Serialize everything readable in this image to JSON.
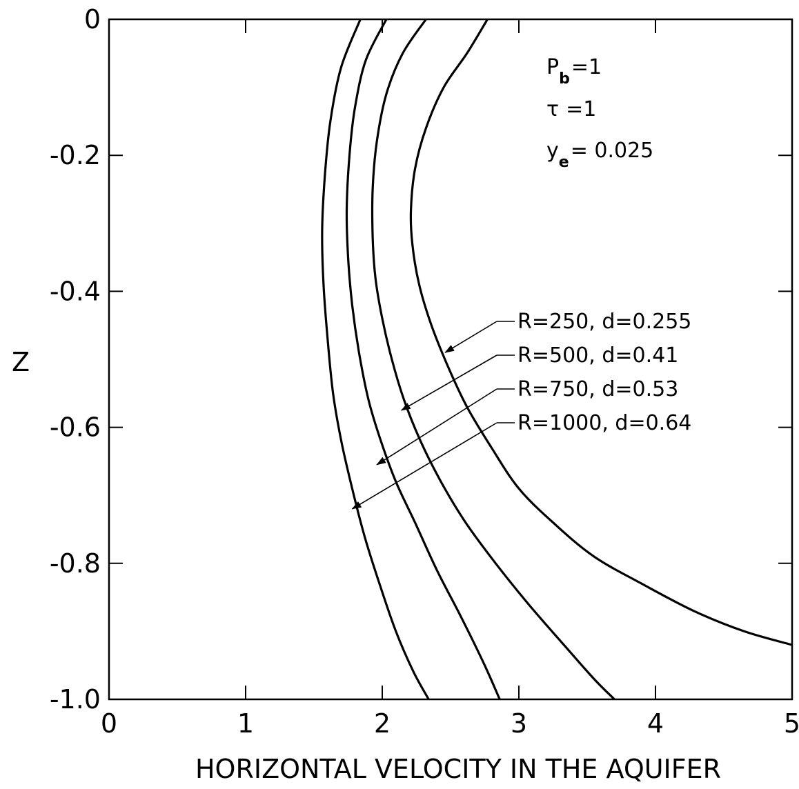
{
  "chart_data": {
    "type": "line",
    "title": "",
    "xlabel": "HORIZONTAL VELOCITY IN THE AQUIFER",
    "ylabel": "Z",
    "xlim": [
      0,
      5
    ],
    "ylim": [
      -1.0,
      0
    ],
    "x_ticks": [
      "0",
      "1",
      "2",
      "3",
      "4",
      "5"
    ],
    "x_tick_values": [
      0,
      1,
      2,
      3,
      4,
      5
    ],
    "y_ticks": [
      "0",
      "-0.2",
      "-0.4",
      "-0.6",
      "-0.8",
      "-1.0"
    ],
    "y_tick_values": [
      0,
      -0.2,
      -0.4,
      -0.6,
      -0.8,
      -1.0
    ],
    "grid": false,
    "parameters": [
      {
        "label": "P",
        "sub": "b",
        "value": "=1"
      },
      {
        "label": "τ",
        "sub": "",
        "value": "=1"
      },
      {
        "label": "y",
        "sub": "e",
        "value": "= 0.025"
      }
    ],
    "series": [
      {
        "name": "R=250, d=0.255",
        "x": [
          2.77,
          2.62,
          2.45,
          2.32,
          2.24,
          2.21,
          2.22,
          2.27,
          2.36,
          2.48,
          2.62,
          2.8,
          3.0,
          3.25,
          3.55,
          3.9,
          4.28,
          4.65,
          5.0
        ],
        "y": [
          0.0,
          -0.05,
          -0.1,
          -0.16,
          -0.22,
          -0.28,
          -0.33,
          -0.39,
          -0.45,
          -0.51,
          -0.57,
          -0.63,
          -0.69,
          -0.74,
          -0.79,
          -0.83,
          -0.87,
          -0.9,
          -0.92
        ]
      },
      {
        "name": "R=500, d=0.41",
        "x": [
          2.32,
          2.15,
          2.03,
          1.96,
          1.93,
          1.93,
          1.95,
          2.0,
          2.07,
          2.16,
          2.28,
          2.43,
          2.61,
          2.83,
          3.07,
          3.33,
          3.55,
          3.7
        ],
        "y": [
          0.0,
          -0.05,
          -0.11,
          -0.18,
          -0.25,
          -0.32,
          -0.38,
          -0.44,
          -0.5,
          -0.56,
          -0.62,
          -0.68,
          -0.74,
          -0.8,
          -0.86,
          -0.92,
          -0.97,
          -1.0
        ]
      },
      {
        "name": "R=750, d=0.53",
        "x": [
          2.03,
          1.88,
          1.8,
          1.76,
          1.74,
          1.75,
          1.78,
          1.83,
          1.9,
          1.99,
          2.1,
          2.24,
          2.4,
          2.58,
          2.75,
          2.86
        ],
        "y": [
          0.0,
          -0.06,
          -0.13,
          -0.2,
          -0.28,
          -0.35,
          -0.42,
          -0.49,
          -0.56,
          -0.62,
          -0.68,
          -0.74,
          -0.81,
          -0.88,
          -0.95,
          -1.0
        ]
      },
      {
        "name": "R=1000, d=0.64",
        "x": [
          1.84,
          1.7,
          1.62,
          1.58,
          1.56,
          1.57,
          1.6,
          1.64,
          1.7,
          1.78,
          1.87,
          1.98,
          2.1,
          2.23,
          2.34
        ],
        "y": [
          0.0,
          -0.07,
          -0.15,
          -0.23,
          -0.31,
          -0.39,
          -0.47,
          -0.55,
          -0.62,
          -0.69,
          -0.76,
          -0.83,
          -0.9,
          -0.96,
          -1.0
        ]
      }
    ],
    "annotations": [
      {
        "text": "R=250, d=0.255",
        "target": [
          2.46,
          -0.49
        ]
      },
      {
        "text": "R=500, d=0.41",
        "target": [
          2.14,
          -0.575
        ]
      },
      {
        "text": "R=750, d=0.53",
        "target": [
          1.96,
          -0.655
        ]
      },
      {
        "text": "R=1000, d=0.64",
        "target": [
          1.78,
          -0.72
        ]
      }
    ]
  }
}
